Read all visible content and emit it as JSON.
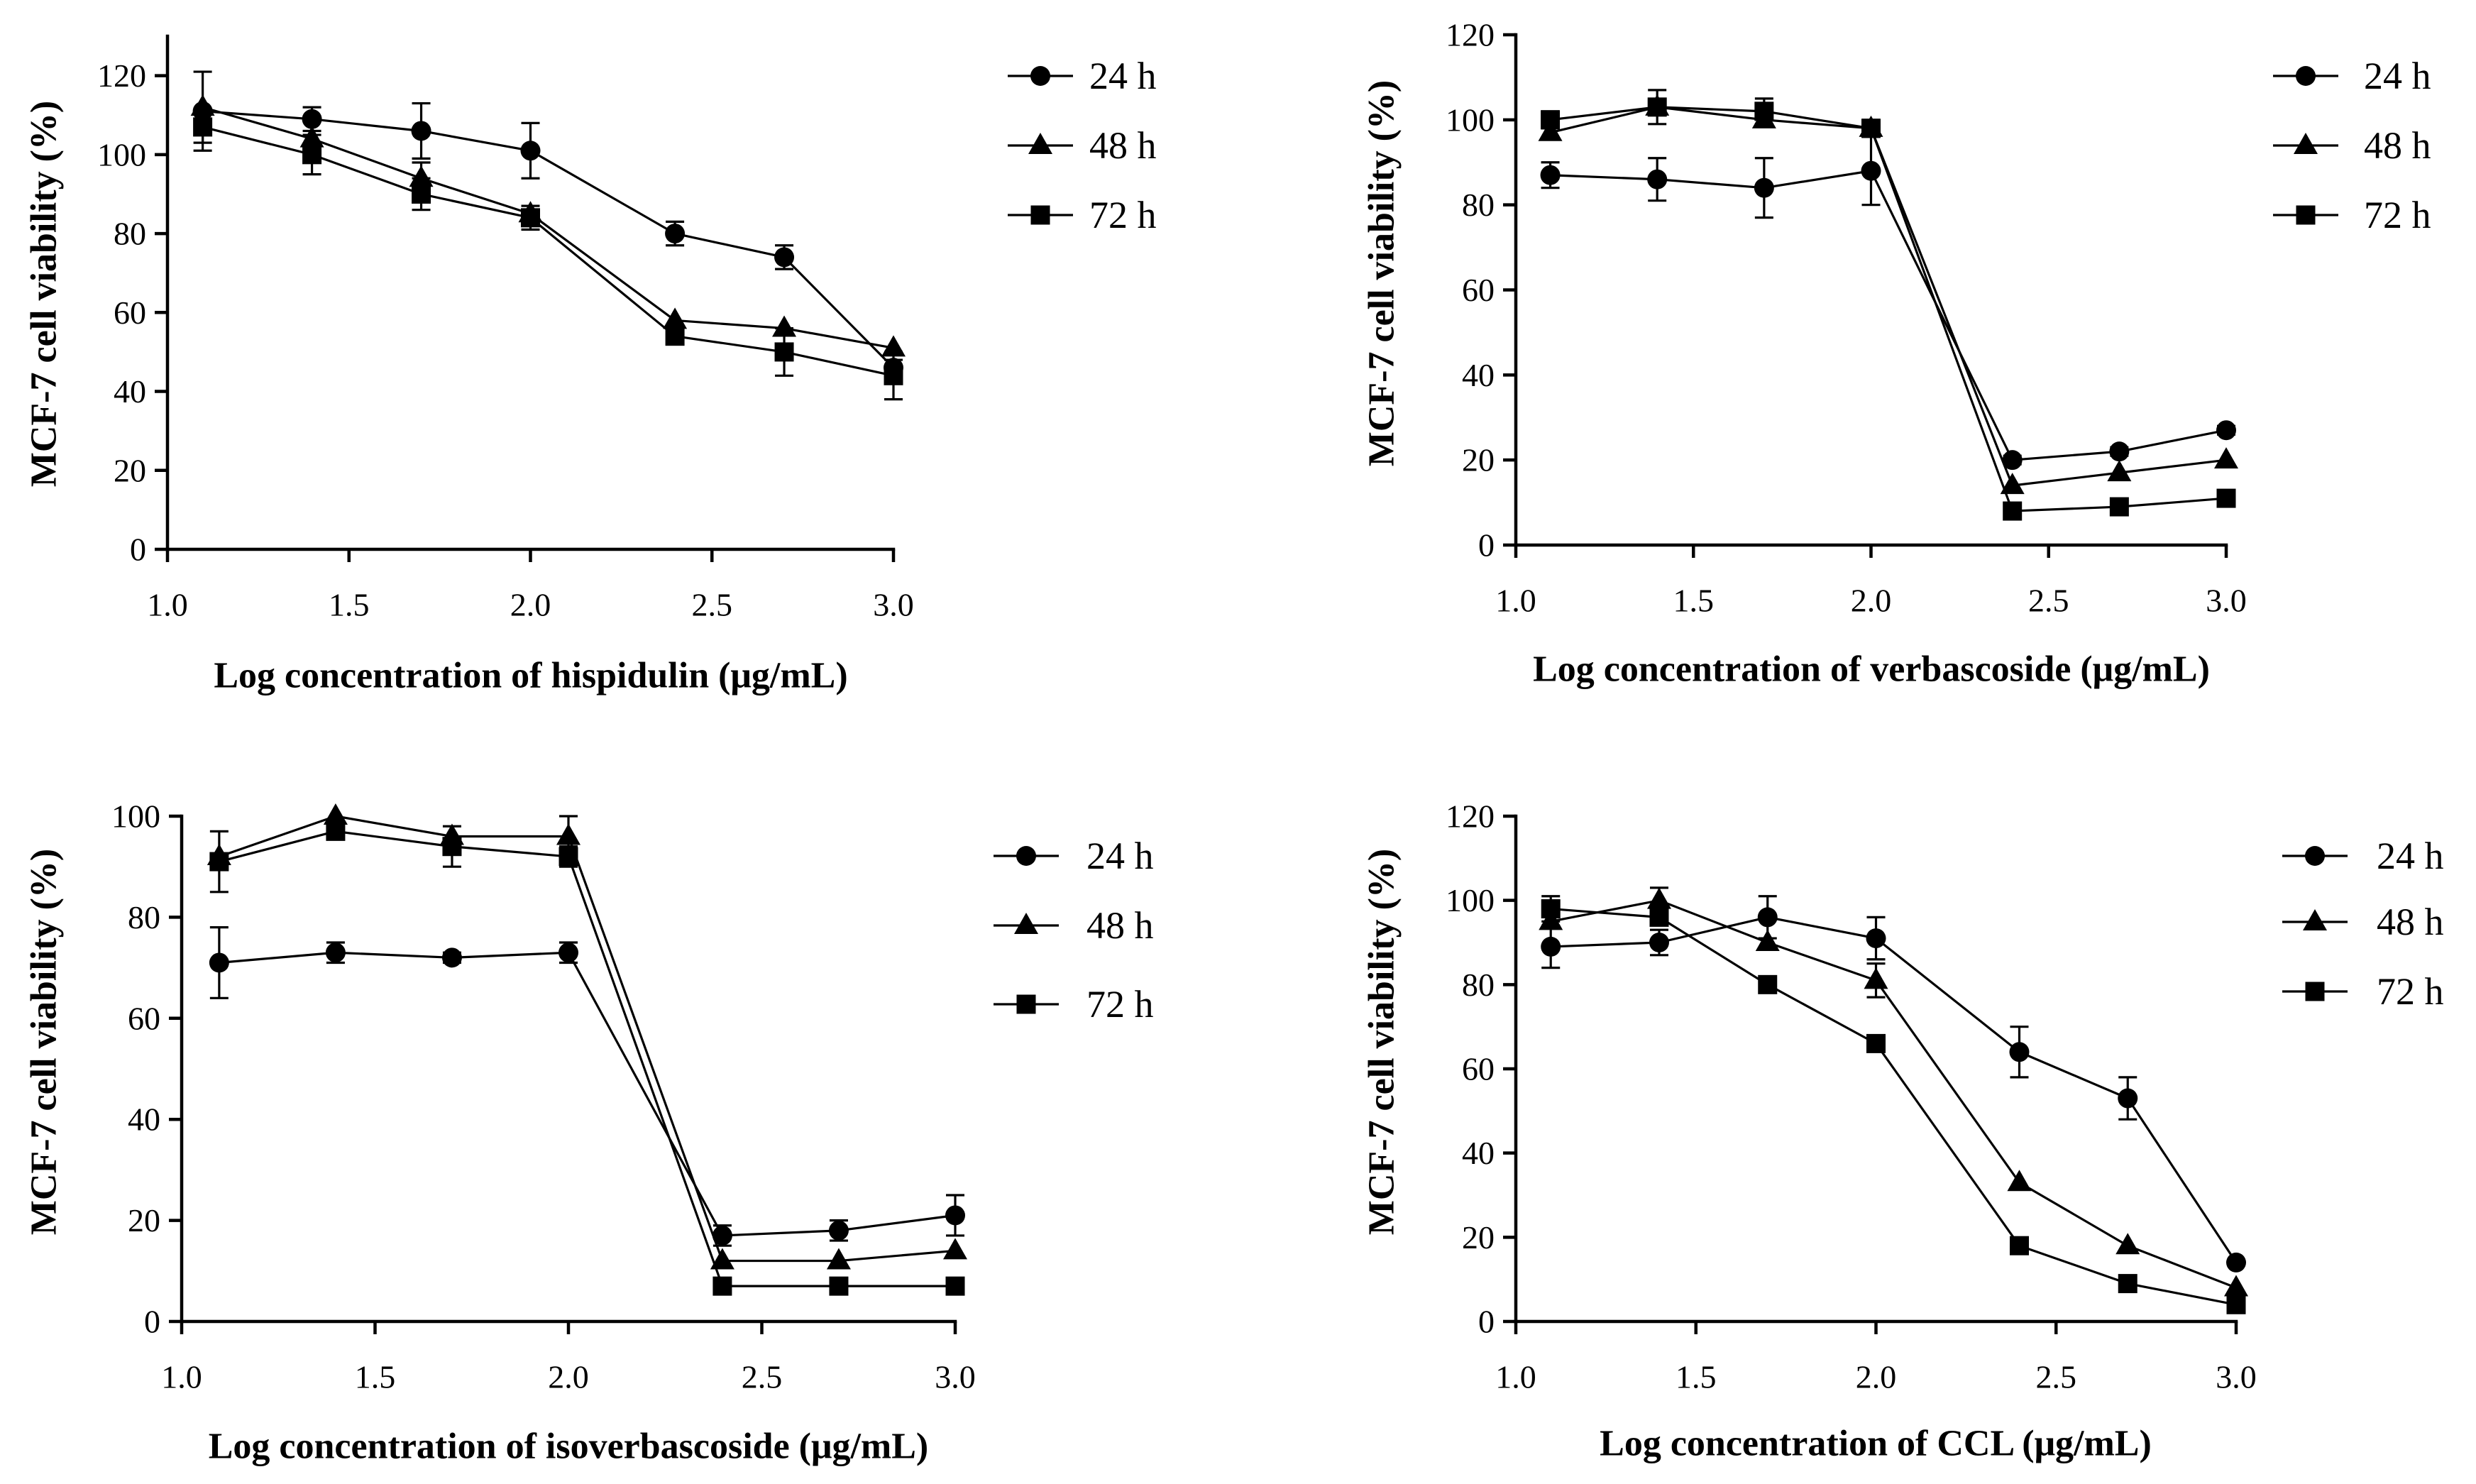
{
  "figure": {
    "background": "#ffffff",
    "ink": "#000000"
  },
  "chart_data": [
    {
      "type": "line",
      "xlabel": "Log concentration of hispidulin (μg/mL)",
      "ylabel": "MCF-7 cell viability (%)",
      "xlim": [
        1.0,
        3.0
      ],
      "ylim": [
        0,
        130
      ],
      "xticks": [
        1.0,
        1.5,
        2.0,
        2.5,
        3.0
      ],
      "xtick_labels": [
        "1.0",
        "1.5",
        "2.0",
        "2.5",
        "3.0"
      ],
      "yticks": [
        0,
        20,
        40,
        60,
        80,
        100,
        120
      ],
      "ytick_labels": [
        "0",
        "20",
        "40",
        "60",
        "80",
        "100",
        "120"
      ],
      "legend_position": "right",
      "x": [
        1.097,
        1.398,
        1.699,
        2.0,
        2.398,
        2.699,
        3.0
      ],
      "series": [
        {
          "name": "24 h",
          "marker": "circle",
          "values": [
            111,
            109,
            106,
            101,
            80,
            74,
            46
          ],
          "err": [
            10,
            3,
            7,
            7,
            3,
            3,
            2
          ]
        },
        {
          "name": "48 h",
          "marker": "triangle",
          "values": [
            112,
            104,
            94,
            85,
            58,
            56,
            51
          ],
          "err": [
            0,
            0,
            4,
            0,
            0,
            0,
            0
          ]
        },
        {
          "name": "72 h",
          "marker": "square",
          "values": [
            107,
            100,
            90,
            84,
            54,
            50,
            44
          ],
          "err": [
            4,
            5,
            4,
            3,
            2,
            6,
            6
          ]
        }
      ]
    },
    {
      "type": "line",
      "xlabel": "Log concentration of verbascoside (μg/mL)",
      "ylabel": "MCF-7 cell viability (%)",
      "xlim": [
        1.0,
        3.0
      ],
      "ylim": [
        0,
        120
      ],
      "xticks": [
        1.0,
        1.5,
        2.0,
        2.5,
        3.0
      ],
      "xtick_labels": [
        "1.0",
        "1.5",
        "2.0",
        "2.5",
        "3.0"
      ],
      "yticks": [
        0,
        20,
        40,
        60,
        80,
        100,
        120
      ],
      "ytick_labels": [
        "0",
        "20",
        "40",
        "60",
        "80",
        "100",
        "120"
      ],
      "legend_position": "right",
      "x": [
        1.097,
        1.398,
        1.699,
        2.0,
        2.398,
        2.699,
        3.0
      ],
      "series": [
        {
          "name": "24 h",
          "marker": "circle",
          "values": [
            87,
            86,
            84,
            88,
            20,
            22,
            27
          ],
          "err": [
            3,
            5,
            7,
            8,
            1,
            1,
            1
          ]
        },
        {
          "name": "48 h",
          "marker": "triangle",
          "values": [
            97,
            103,
            100,
            98,
            14,
            17,
            20
          ],
          "err": [
            0,
            0,
            0,
            0,
            0,
            0,
            0
          ]
        },
        {
          "name": "72 h",
          "marker": "square",
          "values": [
            100,
            103,
            102,
            98,
            8,
            9,
            11
          ],
          "err": [
            2,
            4,
            3,
            2,
            0,
            0,
            0
          ]
        }
      ]
    },
    {
      "type": "line",
      "xlabel": "Log concentration of isoverbascoside (μg/mL)",
      "ylabel": "MCF-7 cell viability (%)",
      "xlim": [
        1.0,
        3.0
      ],
      "ylim": [
        0,
        100
      ],
      "xticks": [
        1.0,
        1.5,
        2.0,
        2.5,
        3.0
      ],
      "xtick_labels": [
        "1.0",
        "1.5",
        "2.0",
        "2.5",
        "3.0"
      ],
      "yticks": [
        0,
        20,
        40,
        60,
        80,
        100
      ],
      "ytick_labels": [
        "0",
        "20",
        "40",
        "60",
        "80",
        "100"
      ],
      "legend_position": "right",
      "x": [
        1.097,
        1.398,
        1.699,
        2.0,
        2.398,
        2.699,
        3.0
      ],
      "series": [
        {
          "name": "24 h",
          "marker": "circle",
          "values": [
            71,
            73,
            72,
            73,
            17,
            18,
            21
          ],
          "err": [
            7,
            2,
            1,
            2,
            2,
            2,
            4
          ]
        },
        {
          "name": "48 h",
          "marker": "triangle",
          "values": [
            92,
            100,
            96,
            96,
            12,
            12,
            14
          ],
          "err": [
            0,
            0,
            0,
            4,
            0,
            0,
            0
          ]
        },
        {
          "name": "72 h",
          "marker": "square",
          "values": [
            91,
            97,
            94,
            92,
            7,
            7,
            7
          ],
          "err": [
            6,
            1,
            4,
            2,
            0,
            0,
            0
          ]
        }
      ]
    },
    {
      "type": "line",
      "xlabel": "Log concentration of CCL (μg/mL)",
      "ylabel": "MCF-7 cell viability (%)",
      "xlim": [
        1.0,
        3.0
      ],
      "ylim": [
        0,
        120
      ],
      "xticks": [
        1.0,
        1.5,
        2.0,
        2.5,
        3.0
      ],
      "xtick_labels": [
        "1.0",
        "1.5",
        "2.0",
        "2.5",
        "3.0"
      ],
      "yticks": [
        0,
        20,
        40,
        60,
        80,
        100,
        120
      ],
      "ytick_labels": [
        "0",
        "20",
        "40",
        "60",
        "80",
        "100",
        "120"
      ],
      "legend_position": "right",
      "x": [
        1.097,
        1.398,
        1.699,
        2.0,
        2.398,
        2.699,
        3.0
      ],
      "series": [
        {
          "name": "24 h",
          "marker": "circle",
          "values": [
            89,
            90,
            96,
            91,
            64,
            53,
            14
          ],
          "err": [
            5,
            3,
            5,
            5,
            6,
            5,
            0
          ]
        },
        {
          "name": "48 h",
          "marker": "triangle",
          "values": [
            95,
            100,
            90,
            81,
            33,
            18,
            8
          ],
          "err": [
            0,
            3,
            0,
            4,
            0,
            0,
            0
          ]
        },
        {
          "name": "72 h",
          "marker": "square",
          "values": [
            98,
            96,
            80,
            66,
            18,
            9,
            4
          ],
          "err": [
            3,
            0,
            0,
            0,
            0,
            0,
            0
          ]
        }
      ]
    }
  ]
}
